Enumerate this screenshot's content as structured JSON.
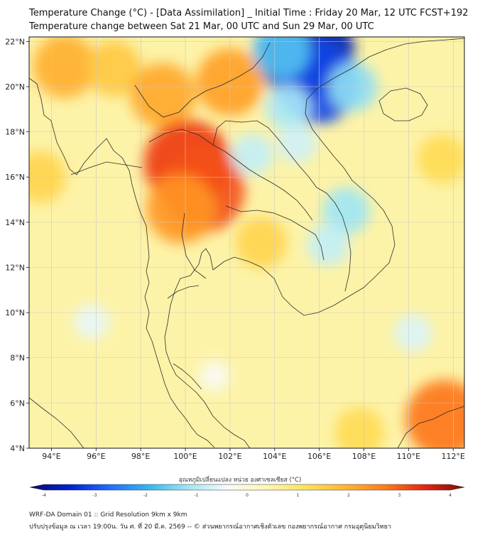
{
  "title": {
    "line1": "Temperature Change (°C) - [Data Assimilation] _ Initial Time : Friday 20 Mar, 12 UTC FCST+192",
    "line2": "Temperature change between Sat 21 Mar, 00 UTC and Sun 29 Mar, 00 UTC"
  },
  "map": {
    "lon_range": [
      93,
      112.5
    ],
    "lat_range": [
      4,
      22.2
    ],
    "lon_ticks": [
      "94°E",
      "96°E",
      "98°E",
      "100°E",
      "102°E",
      "104°E",
      "106°E",
      "108°E",
      "110°E",
      "112°E"
    ],
    "lat_ticks": [
      "22°N",
      "20°N",
      "18°N",
      "16°N",
      "14°N",
      "12°N",
      "10°N",
      "8°N",
      "6°N",
      "4°N"
    ],
    "grid": true,
    "background_color": "#fdf3a8",
    "anomalies": [
      {
        "lon": 94.6,
        "lat": 20.9,
        "value": 1.9
      },
      {
        "lon": 96.8,
        "lat": 20.8,
        "value": 1.5
      },
      {
        "lon": 99.0,
        "lat": 19.6,
        "value": 2.0
      },
      {
        "lon": 102.0,
        "lat": 20.2,
        "value": 2.1
      },
      {
        "lon": 100.1,
        "lat": 16.6,
        "value": 3.1
      },
      {
        "lon": 100.8,
        "lat": 15.4,
        "value": 2.9
      },
      {
        "lon": 99.8,
        "lat": 14.6,
        "value": 2.2
      },
      {
        "lon": 105.4,
        "lat": 21.5,
        "value": -3.6
      },
      {
        "lon": 105.9,
        "lat": 20.2,
        "value": -2.9
      },
      {
        "lon": 104.3,
        "lat": 21.6,
        "value": -1.6
      },
      {
        "lon": 107.5,
        "lat": 20.0,
        "value": -1.2
      },
      {
        "lon": 104.6,
        "lat": 19.1,
        "value": -1.0
      },
      {
        "lon": 103.0,
        "lat": 17.0,
        "value": -0.8
      },
      {
        "lon": 105.0,
        "lat": 17.5,
        "value": -0.7
      },
      {
        "lon": 107.2,
        "lat": 14.5,
        "value": -1.1
      },
      {
        "lon": 106.4,
        "lat": 13.0,
        "value": -0.8
      },
      {
        "lon": 95.8,
        "lat": 9.6,
        "value": -0.5
      },
      {
        "lon": 110.2,
        "lat": 9.1,
        "value": -0.6
      },
      {
        "lon": 101.3,
        "lat": 7.2,
        "value": -0.3
      },
      {
        "lon": 103.4,
        "lat": 13.1,
        "value": 1.3
      },
      {
        "lon": 111.6,
        "lat": 5.3,
        "value": 2.6
      },
      {
        "lon": 107.8,
        "lat": 4.7,
        "value": 1.2
      },
      {
        "lon": 93.5,
        "lat": 16.0,
        "value": 1.3
      },
      {
        "lon": 111.5,
        "lat": 16.8,
        "value": 1.2
      }
    ]
  },
  "colorbar": {
    "title": "อุณหภูมิเปลี่ยนแปลง หน่วย องศาเซลเซียส (°C)",
    "min": -4,
    "max": 4,
    "tick_labels": [
      "-4",
      "-3",
      "-2",
      "-1",
      "0",
      "1",
      "2",
      "3",
      "4"
    ],
    "colors": [
      "#0a0a6e",
      "#0020d0",
      "#1f6bff",
      "#35b6f0",
      "#9fe6f5",
      "#f7fbfb",
      "#fff6b0",
      "#ffe15a",
      "#ffb52e",
      "#ff7a1a",
      "#e8240e",
      "#7a0d08"
    ]
  },
  "footer": {
    "line1": "WRF-DA Domain 01 :: Grid Resolution 9km x 9km",
    "line2": "ปรับปรุงข้อมูล ณ เวลา 19:00น. วัน ศ. ที่ 20 มี.ค. 2569 -- © ส่วนพยากรณ์อากาศเชิงตัวเลข กองพยากรณ์อากาศ กรมอุตุนิยมวิทยา"
  }
}
